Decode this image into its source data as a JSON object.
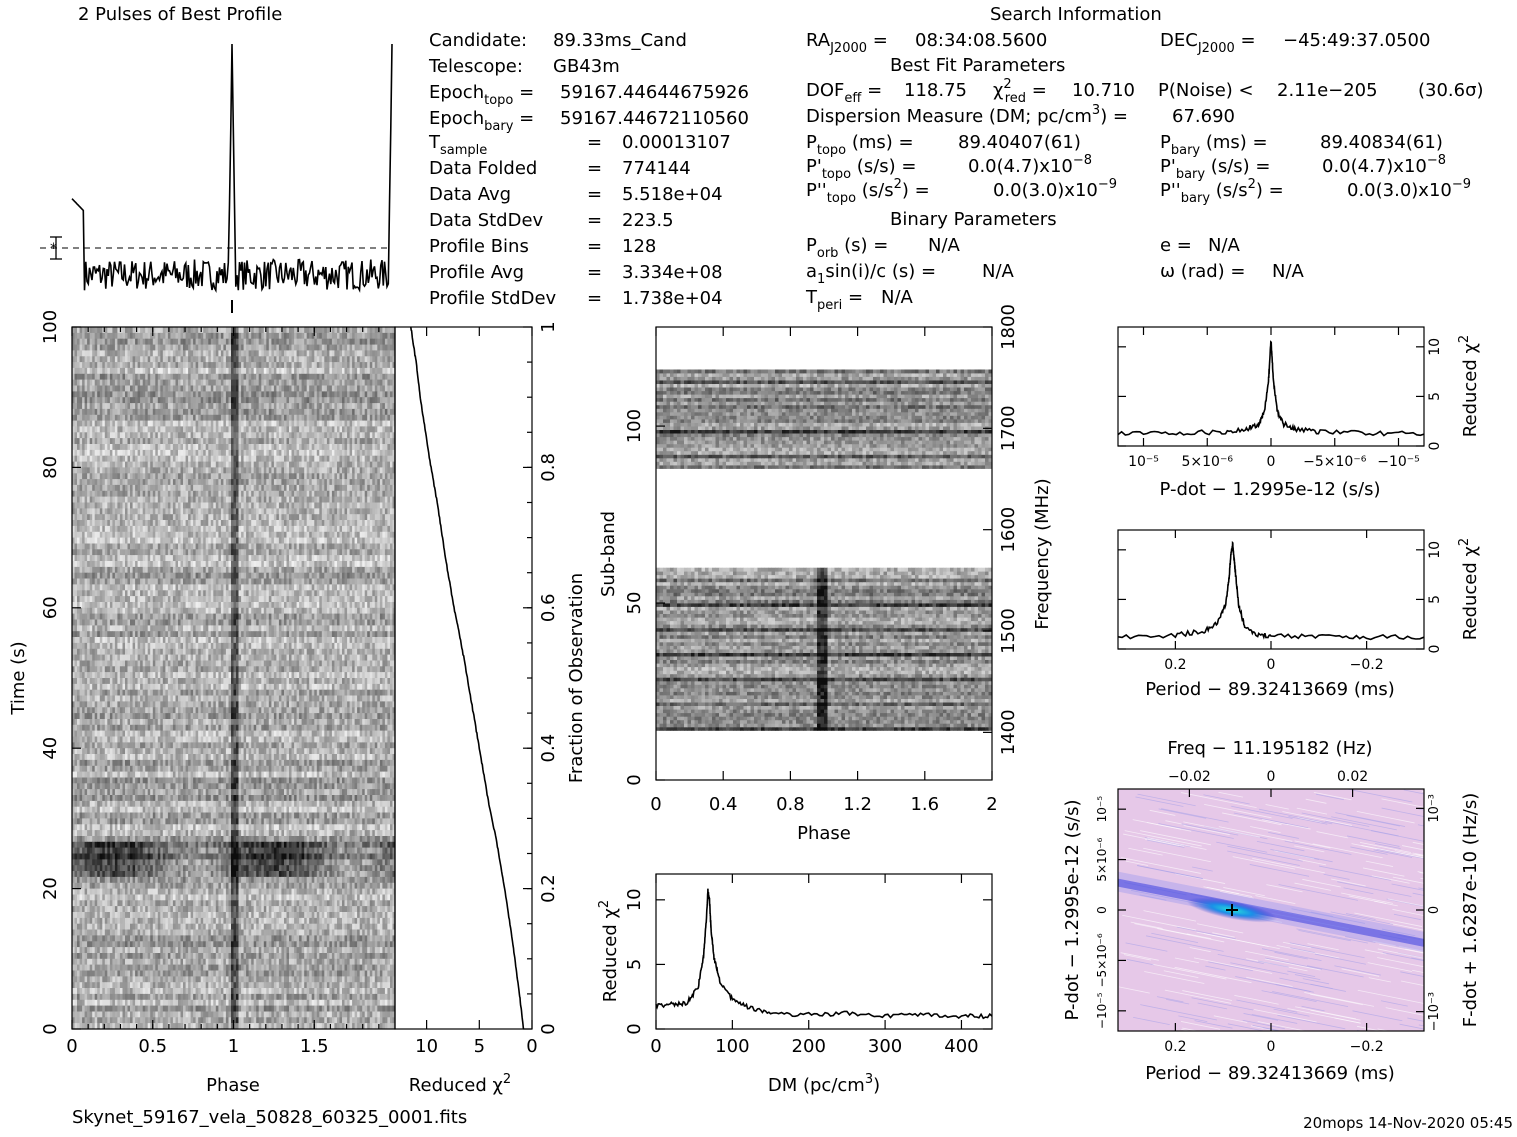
{
  "header": {
    "profile_title": "2 Pulses of Best Profile",
    "search_title": "Search Information",
    "best_fit_title": "Best Fit Parameters",
    "binary_title": "Binary Parameters",
    "footer_file": "Skynet_59167_vela_50828_60325_0001.fits",
    "footer_stamp": "20mops 14-Nov-2020 05:45"
  },
  "info": {
    "candidate_label": "Candidate:",
    "candidate": "89.33ms_Cand",
    "telescope_label": "Telescope:",
    "telescope": "GB43m",
    "epoch_topo": "59167.44644675926",
    "epoch_bary": "59167.44672110560",
    "t_sample": "0.00013107",
    "data_folded": "774144",
    "data_avg": "5.518e+04",
    "data_stddev": "223.5",
    "profile_bins": "128",
    "profile_avg": "3.334e+08",
    "profile_stddev": "1.738e+04",
    "ra": "08:34:08.5600",
    "dec": "−45:49:37.0500",
    "dof_eff": "118.75",
    "chi2_red": "10.710",
    "p_noise": "2.11e−205",
    "sigma": "(30.6σ)",
    "dm": "67.690",
    "p_topo": "89.40407(61)",
    "p_bary": "89.40834(61)",
    "pd_topo": "0.0(4.7)",
    "pd_topo_exp": "−8",
    "pd_bary": "0.0(4.7)",
    "pd_bary_exp": "−8",
    "pdd_topo": "0.0(3.0)",
    "pdd_topo_exp": "−9",
    "pdd_bary": "0.0(3.0)",
    "pdd_bary_exp": "−9",
    "p_orb": "N/A",
    "a1sini": "N/A",
    "t_peri": "N/A",
    "ecc": "N/A",
    "omega": "N/A"
  },
  "labels": {
    "phase": "Phase",
    "time": "Time (s)",
    "reduced_chi2": "Reduced χ",
    "fraction_obs": "Fraction of Observation",
    "sub_band": "Sub-band",
    "frequency": "Frequency (MHz)",
    "dm_axis": "DM (pc/cm",
    "pdot_axis": "P-dot − 1.2995e-12 (s/s)",
    "period_axis": "Period − 89.32413669 (ms)",
    "freq_axis": "Freq − 11.195182 (Hz)",
    "pdot_left": "P-dot − 1.2995e-12 (s/s)",
    "fdot_right": "F-dot + 1.6287e-10 (Hz/s)"
  },
  "colors": {
    "ink": "#000000",
    "ppdot_bg": "#e8c6e6",
    "ppdot_band": "#1f2fd0",
    "ppdot_peak": "#27e0d8"
  },
  "chart_data": [
    {
      "type": "line",
      "title": "2 Pulses of Best Profile",
      "x": [
        0,
        0.5,
        0.96,
        0.98,
        0.99,
        1.0,
        1.01,
        1.02,
        1.05,
        1.5,
        1.96,
        1.98,
        1.99,
        2.0
      ],
      "values": [
        0.35,
        0.0,
        0.0,
        0.15,
        0.55,
        1.0,
        0.55,
        0.15,
        0.0,
        0.0,
        0.0,
        0.15,
        0.55,
        1.0
      ],
      "xlim": [
        0,
        2
      ]
    },
    {
      "type": "heatmap",
      "title": "",
      "xlabel": "Phase",
      "ylabel": "Time (s)",
      "xlim": [
        0,
        2
      ],
      "ylim": [
        0,
        100
      ],
      "x_ticks": [
        "0",
        "0.5",
        "1",
        "1.5"
      ],
      "y_ticks": [
        "0",
        "20",
        "40",
        "60",
        "80",
        "100"
      ],
      "pulse_phases": [
        1.0
      ],
      "dark_time_band": [
        22,
        27
      ]
    },
    {
      "type": "line",
      "title": "",
      "xlabel": "Reduced χ²",
      "ylabel": "Fraction of Observation",
      "x_ticks": [
        "10",
        "5",
        "0"
      ],
      "y_ticks": [
        "0",
        "0.2",
        "0.4",
        "0.6",
        "0.8",
        "1"
      ],
      "xlim": [
        13,
        0
      ],
      "ylim": [
        0,
        1
      ],
      "x": [
        0.8,
        1.2,
        1.8,
        2.6,
        3.4,
        4.2,
        5.0,
        5.8,
        6.6,
        7.4,
        8.2,
        9.0,
        9.8,
        10.6,
        11.0,
        11.5
      ],
      "y": [
        0.0,
        0.05,
        0.12,
        0.2,
        0.27,
        0.33,
        0.4,
        0.47,
        0.54,
        0.6,
        0.67,
        0.75,
        0.82,
        0.9,
        0.95,
        1.0
      ]
    },
    {
      "type": "heatmap",
      "title": "",
      "xlabel": "Phase",
      "ylabel": "Sub-band",
      "y2label": "Frequency (MHz)",
      "xlim": [
        0,
        2
      ],
      "ylim": [
        0,
        128
      ],
      "x_ticks": [
        "0",
        "0.4",
        "0.8",
        "1.2",
        "1.6",
        "2"
      ],
      "y_ticks": [
        "0",
        "50",
        "100"
      ],
      "y2_ticks": [
        "1400",
        "1500",
        "1600",
        "1700",
        "1800"
      ],
      "bands": [
        [
          14,
          60
        ],
        [
          88,
          116
        ]
      ],
      "pulse_phases": [
        1.0
      ]
    },
    {
      "type": "line",
      "title": "",
      "xlabel": "DM (pc/cm³)",
      "ylabel": "Reduced χ²",
      "xlim": [
        0,
        440
      ],
      "ylim": [
        0,
        12
      ],
      "x_ticks": [
        "0",
        "100",
        "200",
        "300",
        "400"
      ],
      "y_ticks": [
        "0",
        "5",
        "10"
      ],
      "x": [
        0,
        20,
        40,
        55,
        62,
        66,
        68,
        70,
        72,
        76,
        84,
        100,
        120,
        150,
        200,
        250,
        300,
        350,
        400,
        440
      ],
      "y": [
        1.8,
        1.9,
        2.0,
        3.2,
        5.5,
        8.5,
        10.7,
        10.0,
        7.8,
        5.5,
        3.6,
        2.3,
        1.7,
        1.2,
        1.1,
        1.2,
        1.0,
        1.1,
        1.0,
        1.0
      ]
    },
    {
      "type": "line",
      "title": "",
      "xlabel": "P-dot − 1.2995e-12 (s/s)",
      "ylabel": "Reduced χ²",
      "xlim": [
        1.2e-05,
        -1.2e-05
      ],
      "ylim": [
        0,
        12
      ],
      "x_ticks": [
        "10⁻⁵",
        "5×10⁻⁶",
        "0",
        "−5×10⁻⁶",
        "−10⁻⁵"
      ],
      "y_ticks": [
        "0",
        "5",
        "10"
      ],
      "x": [
        1.2e-05,
        8e-06,
        4e-06,
        2e-06,
        1e-06,
        5e-07,
        2e-07,
        0,
        -2e-07,
        -5e-07,
        -1e-06,
        -2e-06,
        -4e-06,
        -8e-06,
        -1.2e-05
      ],
      "y": [
        1.2,
        1.3,
        1.4,
        1.7,
        2.2,
        3.5,
        6.5,
        10.7,
        6.5,
        3.5,
        2.2,
        1.7,
        1.4,
        1.3,
        1.2
      ]
    },
    {
      "type": "line",
      "title": "",
      "xlabel": "Period − 89.32413669 (ms)",
      "ylabel": "Reduced χ²",
      "xlim": [
        0.32,
        -0.32
      ],
      "ylim": [
        0,
        12
      ],
      "x_ticks": [
        "0.2",
        "0",
        "−0.2"
      ],
      "y_ticks": [
        "0",
        "5",
        "10"
      ],
      "x": [
        0.32,
        0.2,
        0.14,
        0.11,
        0.095,
        0.088,
        0.084,
        0.08,
        0.075,
        0.068,
        0.055,
        0.03,
        0.0,
        -0.1,
        -0.2,
        -0.32
      ],
      "y": [
        1.2,
        1.4,
        1.8,
        2.8,
        4.5,
        7.0,
        9.5,
        10.6,
        8.0,
        4.5,
        2.2,
        1.5,
        1.3,
        1.3,
        1.2,
        1.2
      ]
    },
    {
      "type": "heatmap",
      "title": "",
      "xlabel": "Period − 89.32413669 (ms)",
      "ylabel": "P-dot − 1.2995e-12 (s/s)",
      "x2label": "Freq − 11.195182 (Hz)",
      "y2label": "F-dot + 1.6287e-10 (Hz/s)",
      "xlim": [
        0.32,
        -0.32
      ],
      "ylim": [
        -1.2e-05,
        1.2e-05
      ],
      "x_ticks": [
        "0.2",
        "0",
        "−0.2"
      ],
      "x2_ticks": [
        "−0.02",
        "0",
        "0.02"
      ],
      "y_ticks": [
        "10⁻⁵",
        "5×10⁻⁶",
        "0",
        "−5×10⁻⁶",
        "−10⁻⁵"
      ],
      "y2_ticks": [
        "−10⁻³",
        "0",
        "10⁻³"
      ],
      "peak": [
        0.08,
        0.0
      ]
    }
  ]
}
